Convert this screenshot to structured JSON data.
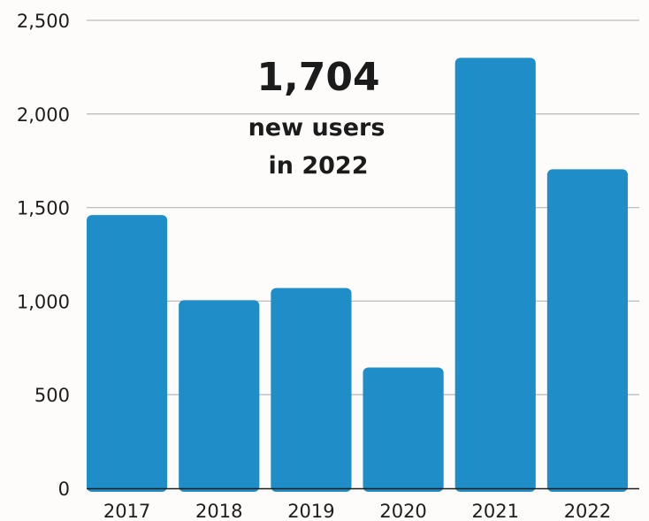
{
  "chart_data": {
    "type": "bar",
    "categories": [
      "2017",
      "2018",
      "2019",
      "2020",
      "2021",
      "2022"
    ],
    "values": [
      1460,
      1005,
      1070,
      645,
      2300,
      1704
    ],
    "ylim": [
      0,
      2500
    ],
    "yticks": [
      "0",
      "500",
      "1,000",
      "1,500",
      "2,000",
      "2,500"
    ],
    "grid": true,
    "bar_color": "#1f8dc8",
    "annotation": {
      "value": "1,704",
      "line1": "new users",
      "line2": "in 2022"
    }
  }
}
